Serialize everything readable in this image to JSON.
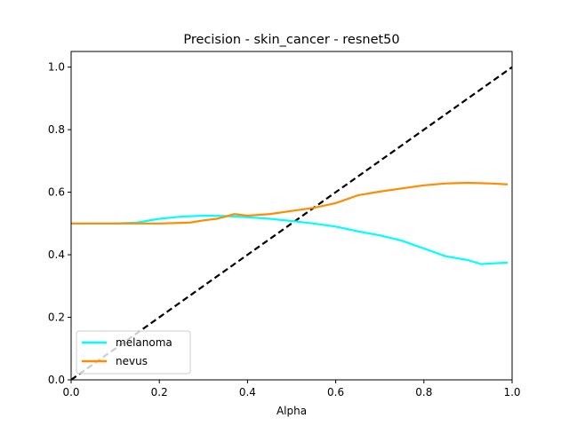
{
  "chart_data": {
    "type": "line",
    "title": "Precision - skin_cancer - resnet50",
    "xlabel": "Alpha",
    "ylabel": "",
    "xlim": [
      0,
      1
    ],
    "ylim": [
      0,
      1.05
    ],
    "xticks": [
      0.0,
      0.2,
      0.4,
      0.6,
      0.8,
      1.0
    ],
    "xtick_labels": [
      "0.0",
      "0.2",
      "0.4",
      "0.6",
      "0.8",
      "1.0"
    ],
    "yticks": [
      0.0,
      0.2,
      0.4,
      0.6,
      0.8,
      1.0
    ],
    "ytick_labels": [
      "0.0",
      "0.2",
      "0.4",
      "0.6",
      "0.8",
      "1.0"
    ],
    "grid": false,
    "legend_position": "lower-left",
    "series": [
      {
        "name": "melanoma",
        "color": "#00ffff",
        "x": [
          0.0,
          0.05,
          0.1,
          0.15,
          0.2,
          0.25,
          0.3,
          0.35,
          0.4,
          0.45,
          0.5,
          0.55,
          0.6,
          0.65,
          0.7,
          0.75,
          0.8,
          0.85,
          0.9,
          0.93,
          0.95,
          0.99
        ],
        "y": [
          0.5,
          0.5,
          0.5,
          0.503,
          0.515,
          0.522,
          0.525,
          0.524,
          0.52,
          0.515,
          0.508,
          0.5,
          0.49,
          0.475,
          0.462,
          0.445,
          0.42,
          0.395,
          0.383,
          0.37,
          0.372,
          0.375
        ]
      },
      {
        "name": "nevus",
        "color": "#ff8c00",
        "x": [
          0.0,
          0.05,
          0.1,
          0.15,
          0.2,
          0.25,
          0.27,
          0.3,
          0.33,
          0.35,
          0.37,
          0.4,
          0.45,
          0.5,
          0.55,
          0.6,
          0.65,
          0.7,
          0.75,
          0.8,
          0.85,
          0.9,
          0.95,
          0.99
        ],
        "y": [
          0.5,
          0.5,
          0.5,
          0.5,
          0.5,
          0.502,
          0.503,
          0.51,
          0.515,
          0.522,
          0.53,
          0.525,
          0.53,
          0.54,
          0.55,
          0.565,
          0.59,
          0.602,
          0.612,
          0.622,
          0.628,
          0.63,
          0.628,
          0.625
        ]
      },
      {
        "name": "",
        "color": "#000000",
        "style": "dashed",
        "x": [
          0.0,
          1.0
        ],
        "y": [
          0.0,
          1.0
        ]
      }
    ]
  }
}
